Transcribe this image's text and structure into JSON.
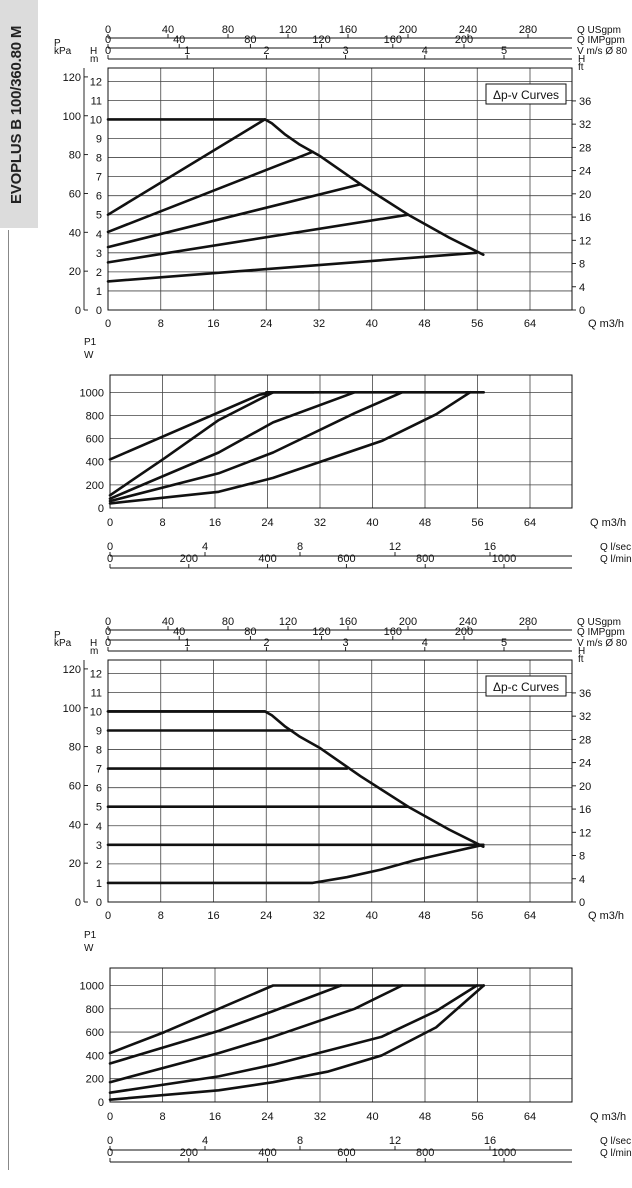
{
  "page": {
    "side_title": "EVOPLUS B 100/360.80 M"
  },
  "chart_data": [
    {
      "type": "line",
      "id": "pv-head",
      "title": "Δp-v Curves",
      "x_label": "Q m3/h",
      "x_ticks": [
        "0",
        "8",
        "16",
        "24",
        "32",
        "40",
        "48",
        "56",
        "64"
      ],
      "x_range": [
        0,
        68
      ],
      "usgpm": {
        "label": "Q USgpm",
        "ticks": [
          "0",
          "40",
          "80",
          "120",
          "160",
          "200",
          "240",
          "280"
        ]
      },
      "impgpm": {
        "label": "Q IMPgpm",
        "ticks": [
          "0",
          "40",
          "80",
          "120",
          "160",
          "200"
        ]
      },
      "velocity": {
        "label": "V m/s Ø 80",
        "ticks": [
          "0",
          "1",
          "2",
          "3",
          "4",
          "5"
        ]
      },
      "kpa": {
        "label": "P\nkPa",
        "ticks": [
          "0",
          "20",
          "40",
          "60",
          "80",
          "100",
          "120"
        ]
      },
      "head_m": {
        "label": "H\nm",
        "ticks": [
          "0",
          "1",
          "2",
          "3",
          "4",
          "5",
          "6",
          "7",
          "8",
          "9",
          "10",
          "11",
          "12"
        ],
        "range": [
          0,
          12.7
        ]
      },
      "head_ft": {
        "label": "H\nft",
        "ticks": [
          "0",
          "4",
          "8",
          "12",
          "16",
          "20",
          "24",
          "28",
          "32",
          "36"
        ]
      },
      "series": [
        {
          "points": [
            [
              0,
              5
            ],
            [
              23,
              10
            ]
          ]
        },
        {
          "points": [
            [
              0,
              4.1
            ],
            [
              30,
              8.3
            ]
          ]
        },
        {
          "points": [
            [
              0,
              3.3
            ],
            [
              37,
              6.6
            ]
          ]
        },
        {
          "points": [
            [
              0,
              2.5
            ],
            [
              44,
              5.0
            ]
          ]
        },
        {
          "points": [
            [
              0,
              1.5
            ],
            [
              54,
              3.0
            ]
          ]
        },
        {
          "points": [
            [
              0,
              10
            ],
            [
              23,
              10
            ],
            [
              24,
              9.8
            ],
            [
              26,
              9.2
            ],
            [
              28,
              8.7
            ],
            [
              31,
              8.1
            ],
            [
              37,
              6.6
            ],
            [
              44,
              5.0
            ],
            [
              50,
              3.8
            ],
            [
              55,
              2.9
            ]
          ]
        }
      ]
    },
    {
      "type": "line",
      "id": "pv-power",
      "y_label": "P1\nW",
      "y_ticks": [
        "0",
        "200",
        "400",
        "600",
        "800",
        "1000"
      ],
      "y_range": [
        0,
        1150
      ],
      "x_range": [
        0,
        68
      ],
      "x_label": "Q m3/h",
      "x_ticks": [
        "0",
        "8",
        "16",
        "24",
        "32",
        "40",
        "48",
        "56",
        "64"
      ],
      "lsec": {
        "label": "Q l/sec",
        "ticks": [
          "0",
          "4",
          "8",
          "12",
          "16"
        ]
      },
      "lmin": {
        "label": "Q l/min",
        "ticks": [
          "0",
          "200",
          "400",
          "600",
          "800",
          "1000"
        ]
      },
      "series": [
        {
          "points": [
            [
              0,
              420
            ],
            [
              22,
              980
            ],
            [
              24,
              1000
            ]
          ]
        },
        {
          "points": [
            [
              0,
              110
            ],
            [
              8,
              430
            ],
            [
              16,
              760
            ],
            [
              24,
              1000
            ],
            [
              30,
              1000
            ]
          ]
        },
        {
          "points": [
            [
              0,
              80
            ],
            [
              16,
              480
            ],
            [
              24,
              740
            ],
            [
              36,
              1000
            ]
          ]
        },
        {
          "points": [
            [
              0,
              60
            ],
            [
              16,
              300
            ],
            [
              24,
              480
            ],
            [
              36,
              820
            ],
            [
              43,
              1000
            ]
          ]
        },
        {
          "points": [
            [
              0,
              40
            ],
            [
              16,
              140
            ],
            [
              24,
              260
            ],
            [
              40,
              580
            ],
            [
              48,
              810
            ],
            [
              53,
              1000
            ]
          ]
        },
        {
          "points": [
            [
              23,
              1000
            ],
            [
              55,
              1000
            ]
          ]
        }
      ]
    },
    {
      "type": "line",
      "id": "pc-head",
      "title": "Δp-c Curves",
      "x_label": "Q m3/h",
      "x_ticks": [
        "0",
        "8",
        "16",
        "24",
        "32",
        "40",
        "48",
        "56",
        "64"
      ],
      "x_range": [
        0,
        68
      ],
      "usgpm": {
        "label": "Q USgpm",
        "ticks": [
          "0",
          "40",
          "80",
          "120",
          "160",
          "200",
          "240",
          "280"
        ]
      },
      "impgpm": {
        "label": "Q IMPgpm",
        "ticks": [
          "0",
          "40",
          "80",
          "120",
          "160",
          "200"
        ]
      },
      "velocity": {
        "label": "V m/s Ø 80",
        "ticks": [
          "0",
          "1",
          "2",
          "3",
          "4",
          "5"
        ]
      },
      "kpa": {
        "label": "P\nkPa",
        "ticks": [
          "0",
          "20",
          "40",
          "60",
          "80",
          "100",
          "120"
        ]
      },
      "head_m": {
        "label": "H\nm",
        "ticks": [
          "0",
          "1",
          "2",
          "3",
          "4",
          "5",
          "6",
          "7",
          "8",
          "9",
          "10",
          "11",
          "12"
        ],
        "range": [
          0,
          12.7
        ]
      },
      "head_ft": {
        "label": "H\nft",
        "ticks": [
          "0",
          "4",
          "8",
          "12",
          "16",
          "20",
          "24",
          "28",
          "32",
          "36"
        ]
      },
      "series": [
        {
          "points": [
            [
              0,
              10
            ],
            [
              23,
              10
            ]
          ]
        },
        {
          "points": [
            [
              0,
              9
            ],
            [
              27,
              9
            ]
          ]
        },
        {
          "points": [
            [
              0,
              7
            ],
            [
              35,
              7
            ]
          ]
        },
        {
          "points": [
            [
              0,
              5
            ],
            [
              44,
              5
            ]
          ]
        },
        {
          "points": [
            [
              0,
              3
            ],
            [
              55,
              3
            ]
          ]
        },
        {
          "points": [
            [
              0,
              1
            ],
            [
              30,
              1
            ],
            [
              35,
              1.3
            ],
            [
              40,
              1.7
            ],
            [
              45,
              2.2
            ],
            [
              50,
              2.6
            ],
            [
              55,
              3
            ]
          ]
        },
        {
          "points": [
            [
              0,
              10
            ],
            [
              23,
              10
            ],
            [
              24,
              9.8
            ],
            [
              26,
              9.2
            ],
            [
              28,
              8.7
            ],
            [
              31,
              8.1
            ],
            [
              37,
              6.6
            ],
            [
              44,
              5.0
            ],
            [
              50,
              3.8
            ],
            [
              55,
              2.9
            ]
          ]
        }
      ]
    },
    {
      "type": "line",
      "id": "pc-power",
      "y_label": "P1\nW",
      "y_ticks": [
        "0",
        "200",
        "400",
        "600",
        "800",
        "1000"
      ],
      "y_range": [
        0,
        1150
      ],
      "x_range": [
        0,
        68
      ],
      "x_label": "Q m3/h",
      "x_ticks": [
        "0",
        "8",
        "16",
        "24",
        "32",
        "40",
        "48",
        "56",
        "64"
      ],
      "lsec": {
        "label": "Q l/sec",
        "ticks": [
          "0",
          "4",
          "8",
          "12",
          "16"
        ]
      },
      "lmin": {
        "label": "Q l/min",
        "ticks": [
          "0",
          "200",
          "400",
          "600",
          "800",
          "1000"
        ]
      },
      "series": [
        {
          "points": [
            [
              0,
              420
            ],
            [
              8,
              600
            ],
            [
              16,
              800
            ],
            [
              24,
              1000
            ],
            [
              55,
              1000
            ]
          ]
        },
        {
          "points": [
            [
              0,
              330
            ],
            [
              16,
              610
            ],
            [
              24,
              780
            ],
            [
              34,
              1000
            ]
          ]
        },
        {
          "points": [
            [
              0,
              170
            ],
            [
              16,
              420
            ],
            [
              24,
              560
            ],
            [
              36,
              800
            ],
            [
              43,
              1000
            ]
          ]
        },
        {
          "points": [
            [
              0,
              80
            ],
            [
              16,
              220
            ],
            [
              24,
              320
            ],
            [
              40,
              560
            ],
            [
              48,
              780
            ],
            [
              54,
              1000
            ]
          ]
        },
        {
          "points": [
            [
              0,
              20
            ],
            [
              16,
              100
            ],
            [
              24,
              170
            ],
            [
              32,
              260
            ],
            [
              40,
              400
            ],
            [
              48,
              640
            ],
            [
              55,
              1000
            ]
          ]
        }
      ]
    }
  ]
}
